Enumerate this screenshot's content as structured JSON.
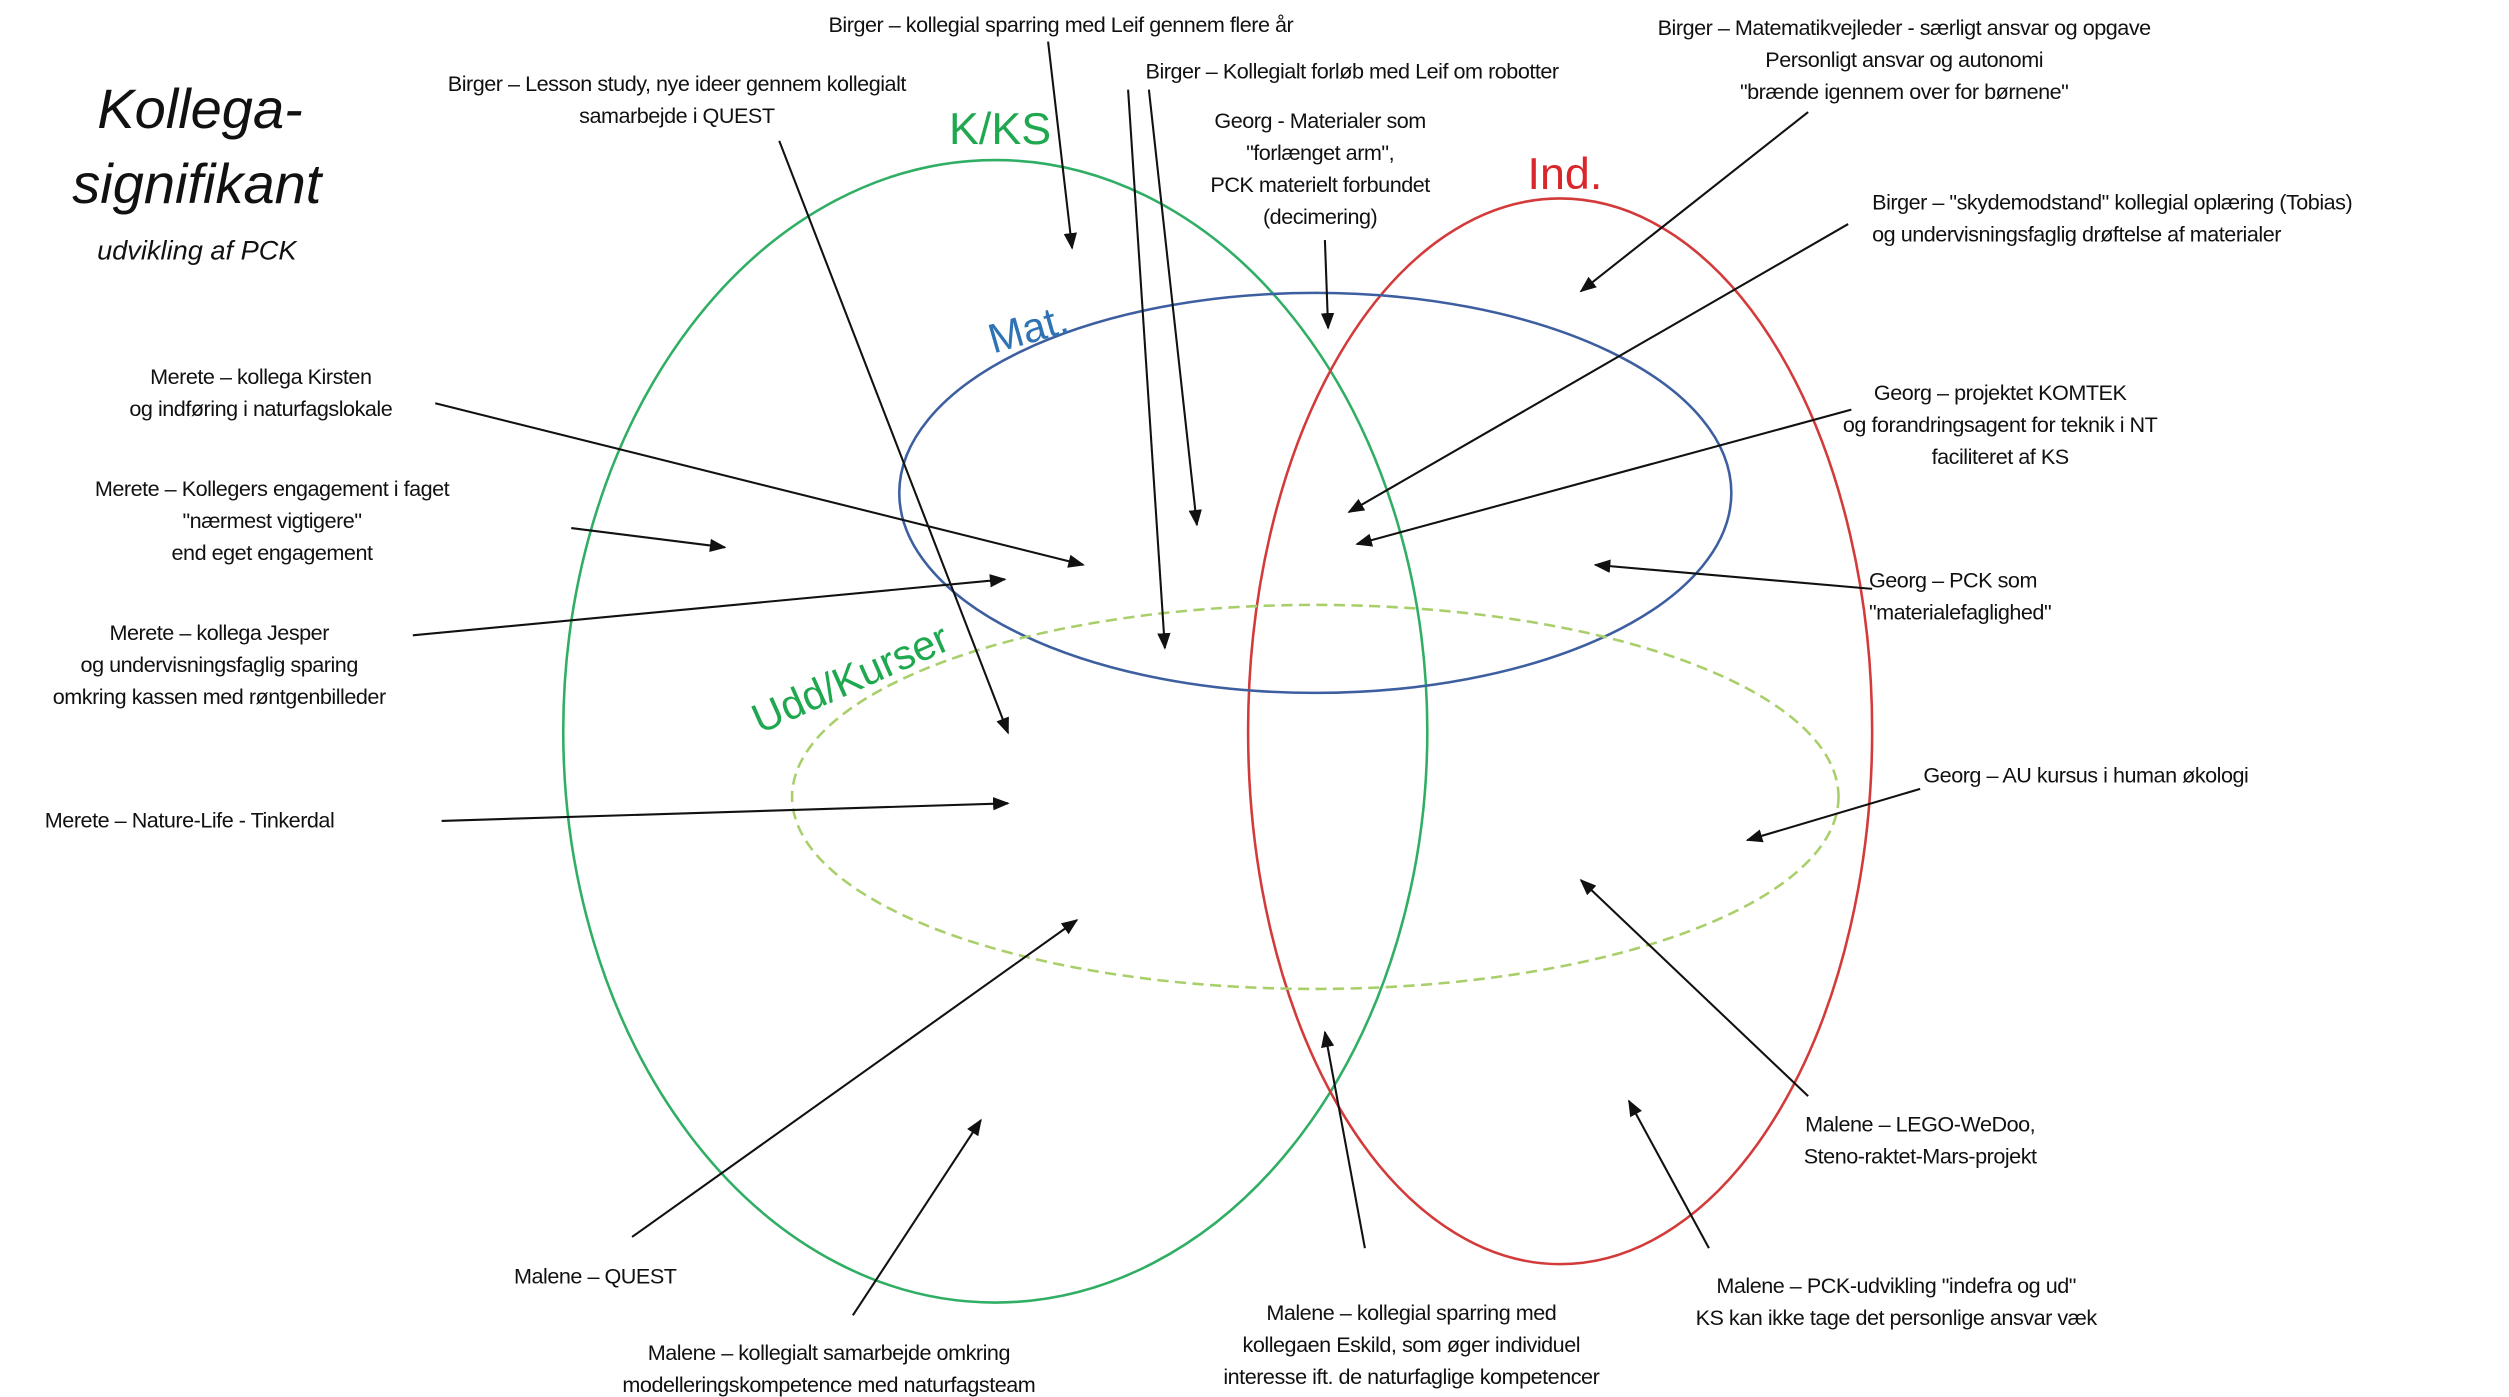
{
  "title": {
    "lines": [
      "Kollega-",
      "signifikant"
    ],
    "subtitle": "udvikling af PCK"
  },
  "sets": [
    {
      "label": "K/KS",
      "color": "#1fa84f"
    },
    {
      "label": "Ind.",
      "color": "#d9262a"
    },
    {
      "label": "Mat.",
      "color": "#2f73b5"
    },
    {
      "label": "Udd/Kurser",
      "color": "#1fa84f"
    }
  ],
  "annotations": [
    {
      "lines": [
        "Birger – kollegial sparring med Leif gennem flere år"
      ]
    },
    {
      "lines": [
        "Birger – Lesson study, nye ideer gennem kollegialt",
        "samarbejde i QUEST"
      ]
    },
    {
      "lines": [
        "Birger – Kollegialt forløb med Leif om robotter"
      ]
    },
    {
      "lines": [
        "Georg - Materialer som",
        "\"forlænget arm\",",
        "PCK materielt forbundet",
        "(decimering)"
      ]
    },
    {
      "lines": [
        "Birger – Matematikvejleder - særligt ansvar og opgave",
        "Personligt ansvar og autonomi",
        "\"brænde igennem over for børnene\""
      ]
    },
    {
      "lines": [
        "Birger – \"skydemodstand\" kollegial oplæring (Tobias)",
        "og undervisningsfaglig drøftelse af materialer"
      ]
    },
    {
      "lines": [
        "Merete – kollega Kirsten",
        "og indføring i naturfagslokale"
      ]
    },
    {
      "lines": [
        "Georg –  projektet KOMTEK",
        "og forandringsagent for teknik i NT",
        "faciliteret af KS"
      ]
    },
    {
      "lines": [
        "Merete – Kollegers engagement i faget",
        "\"nærmest vigtigere\"",
        "end eget engagement"
      ]
    },
    {
      "lines": [
        "Georg – PCK som",
        "\"materialefaglighed\""
      ]
    },
    {
      "lines": [
        "Merete – kollega Jesper",
        "og undervisningsfaglig sparing",
        "omkring kassen med røntgenbilleder"
      ]
    },
    {
      "lines": [
        "Georg – AU kursus i human økologi"
      ]
    },
    {
      "lines": [
        "Merete –  Nature-Life - Tinkerdal"
      ]
    },
    {
      "lines": [
        "Malene – QUEST"
      ]
    },
    {
      "lines": [
        "Malene – kollegialt samarbejde omkring",
        "modelleringskompetence med naturfagsteam"
      ]
    },
    {
      "lines": [
        "Malene –  kollegial sparring med",
        "kollegaen Eskild, som øger individuel",
        "interesse ift. de naturfaglige kompetencer"
      ]
    },
    {
      "lines": [
        "Malene – LEGO-WeDoo,",
        "Steno-raktet-Mars-projekt"
      ]
    },
    {
      "lines": [
        "Malene – PCK-udvikling \"indefra og ud\"",
        "KS kan ikke tage det personlige ansvar væk"
      ]
    }
  ]
}
